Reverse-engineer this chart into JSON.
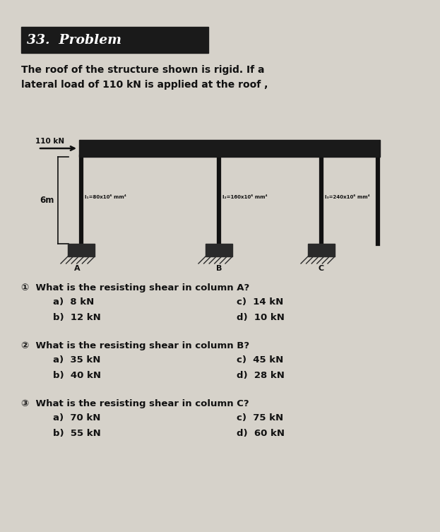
{
  "title": "33.  Problem",
  "title_bg": "#1a1a1a",
  "title_color": "#ffffff",
  "bg_color": "#d6d2ca",
  "intro_text": "The roof of the structure shown is rigid. If a\nlateral load of 110 kN is applied at the roof ,",
  "load_label": "110 kN",
  "height_label": "6m",
  "col_a_label": "I₁=80x10⁶ mm⁴",
  "col_b_label": "I₂=160x10⁶ mm⁴",
  "col_c_label": "I₃=240x10⁶ mm⁴",
  "col_labels": [
    "A",
    "B",
    "C"
  ],
  "q1_text": "①  What is the resisting shear in column A?",
  "q1_opts_left": [
    "a)  8 kN",
    "b)  12 kN"
  ],
  "q1_opts_right": [
    "c)  14 kN",
    "d)  10 kN"
  ],
  "q2_text": "②  What is the resisting shear in column B?",
  "q2_opts_left": [
    "a)  35 kN",
    "b)  40 kN"
  ],
  "q2_opts_right": [
    "c)  45 kN",
    "d)  28 kN"
  ],
  "q3_text": "③  What is the resisting shear in column C?",
  "q3_opts_left": [
    "a)  70 kN",
    "b)  55 kN"
  ],
  "q3_opts_right": [
    "c)  75 kN",
    "d)  60 kN"
  ],
  "figw": 6.23,
  "figh": 7.53,
  "dpi": 100
}
